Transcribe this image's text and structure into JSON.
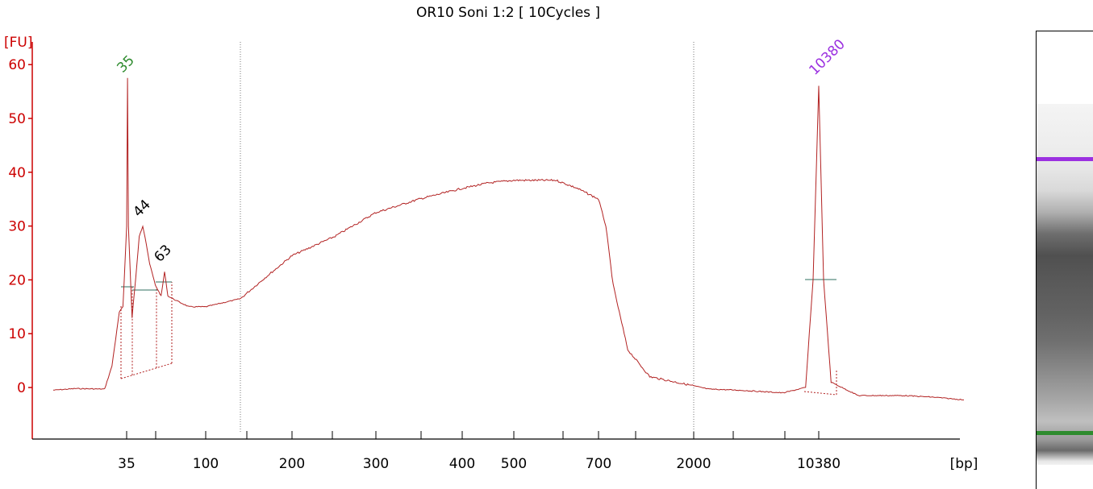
{
  "title": "OR10 Soni 1:2  [ 10Cycles ]",
  "chart_data": {
    "type": "line",
    "title": "OR10 Soni 1:2  [ 10Cycles ]",
    "ylabel": "[FU]",
    "xlabel": "[bp]",
    "ylim": [
      -9,
      63
    ],
    "y_ticks": [
      0,
      10,
      20,
      30,
      40,
      50,
      60
    ],
    "x_tick_labels": [
      "35",
      "100",
      "200",
      "300",
      "400",
      "500",
      "700",
      "2000",
      "10380"
    ],
    "grid": false,
    "peak_labels": [
      {
        "label": "35",
        "color": "#2e8b2e"
      },
      {
        "label": "44",
        "color": "#000000"
      },
      {
        "label": "63",
        "color": "#000000"
      },
      {
        "label": "10380",
        "color": "#9b30e0"
      }
    ],
    "colors": {
      "axis": "#cc0000",
      "trace": "#b22222",
      "baseline": "#2f6f5f",
      "lower_marker": "#2e8b2e",
      "upper_marker": "#9b30e0"
    },
    "series": [
      {
        "x": [
          "25",
          "28",
          "32",
          "33",
          "34",
          "34.5",
          "35",
          "35.5",
          "36",
          "38",
          "40",
          "42",
          "44",
          "46",
          "50",
          "55",
          "60",
          "63",
          "66",
          "75",
          "85",
          "100",
          "130",
          "160",
          "200",
          "250",
          "300",
          "350",
          "400",
          "450",
          "500",
          "550",
          "600",
          "650",
          "700",
          "800",
          "900",
          "1100",
          "1400",
          "2000",
          "3000",
          "5000",
          "8000",
          "9500",
          "10000",
          "10380",
          "10700",
          "11200",
          "13000",
          "16000",
          "18000",
          "20000"
        ],
        "y": [
          -0.5,
          -0.2,
          -0.3,
          4,
          14,
          15,
          30,
          57.5,
          30,
          13,
          20,
          28,
          30,
          28,
          23,
          19,
          17,
          21.5,
          17,
          16,
          15,
          15,
          16.5,
          20,
          24.5,
          28,
          32.5,
          35,
          37,
          38,
          38.5,
          38.5,
          38.5,
          37,
          35,
          30,
          19,
          7,
          2,
          0.3,
          -0.3,
          -0.5,
          -1,
          0,
          20,
          56,
          20,
          1,
          -1.5,
          -1.5,
          -1.8,
          -2.3
        ]
      }
    ]
  }
}
